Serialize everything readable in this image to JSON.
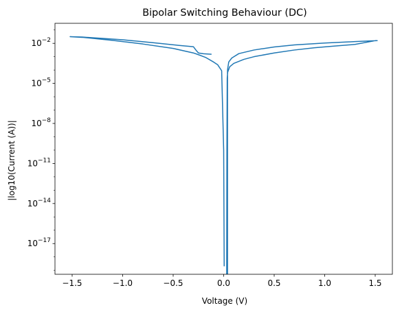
{
  "chart_data": {
    "type": "line",
    "title": "Bipolar Switching Behaviour (DC)",
    "xlabel": "Voltage (V)",
    "ylabel": "|log10(Current (A))|",
    "xlim": [
      -1.67,
      1.67
    ],
    "ylim_exp": [
      -19.3,
      -0.5
    ],
    "y_scale": "log",
    "x_ticks": [
      {
        "value": -1.5,
        "label": "−1.5"
      },
      {
        "value": -1.0,
        "label": "−1.0"
      },
      {
        "value": -0.5,
        "label": "−0.5"
      },
      {
        "value": 0.0,
        "label": "0.0"
      },
      {
        "value": 0.5,
        "label": "0.5"
      },
      {
        "value": 1.0,
        "label": "1.0"
      },
      {
        "value": 1.5,
        "label": "1.5"
      }
    ],
    "y_ticks": [
      {
        "exp": -2,
        "label": "10",
        "sup": "−2"
      },
      {
        "exp": -5,
        "label": "10",
        "sup": "−5"
      },
      {
        "exp": -8,
        "label": "10",
        "sup": "−8"
      },
      {
        "exp": -11,
        "label": "10",
        "sup": "−11"
      },
      {
        "exp": -14,
        "label": "10",
        "sup": "−14"
      },
      {
        "exp": -17,
        "label": "10",
        "sup": "−17"
      }
    ],
    "grid": false,
    "color": "#1f77b4",
    "series": [
      {
        "points": [
          [
            0.03,
            -19.4
          ],
          [
            0.032,
            -10.0
          ],
          [
            0.035,
            -4.6
          ],
          [
            0.04,
            -4.15
          ],
          [
            0.06,
            -3.75
          ],
          [
            0.1,
            -3.5
          ],
          [
            0.2,
            -3.2
          ],
          [
            0.3,
            -3.0
          ],
          [
            0.5,
            -2.72
          ],
          [
            0.7,
            -2.5
          ],
          [
            0.9,
            -2.33
          ],
          [
            1.1,
            -2.2
          ],
          [
            1.3,
            -2.08
          ],
          [
            1.5,
            -1.8
          ],
          [
            1.52,
            -1.8
          ],
          [
            1.3,
            -1.87
          ],
          [
            1.0,
            -1.98
          ],
          [
            0.7,
            -2.12
          ],
          [
            0.5,
            -2.27
          ],
          [
            0.3,
            -2.5
          ],
          [
            0.15,
            -2.77
          ],
          [
            0.08,
            -3.1
          ],
          [
            0.05,
            -3.4
          ],
          [
            0.04,
            -3.9
          ],
          [
            0.038,
            -4.05
          ],
          [
            0.038,
            -19.4
          ]
        ]
      },
      {
        "points": [
          [
            0.005,
            -18.7
          ],
          [
            0.0,
            -10.0
          ],
          [
            -0.02,
            -4.05
          ],
          [
            -0.06,
            -3.6
          ],
          [
            -0.1,
            -3.4
          ],
          [
            -0.18,
            -3.05
          ],
          [
            -0.25,
            -2.85
          ],
          [
            -0.3,
            -2.72
          ],
          [
            -0.5,
            -2.38
          ],
          [
            -0.8,
            -2.05
          ],
          [
            -1.1,
            -1.78
          ],
          [
            -1.4,
            -1.55
          ],
          [
            -1.52,
            -1.5
          ],
          [
            -1.4,
            -1.53
          ],
          [
            -1.0,
            -1.73
          ],
          [
            -0.7,
            -1.95
          ],
          [
            -0.45,
            -2.15
          ],
          [
            -0.3,
            -2.25
          ],
          [
            -0.27,
            -2.55
          ],
          [
            -0.25,
            -2.72
          ],
          [
            -0.2,
            -2.78
          ],
          [
            -0.12,
            -2.82
          ]
        ]
      }
    ]
  }
}
